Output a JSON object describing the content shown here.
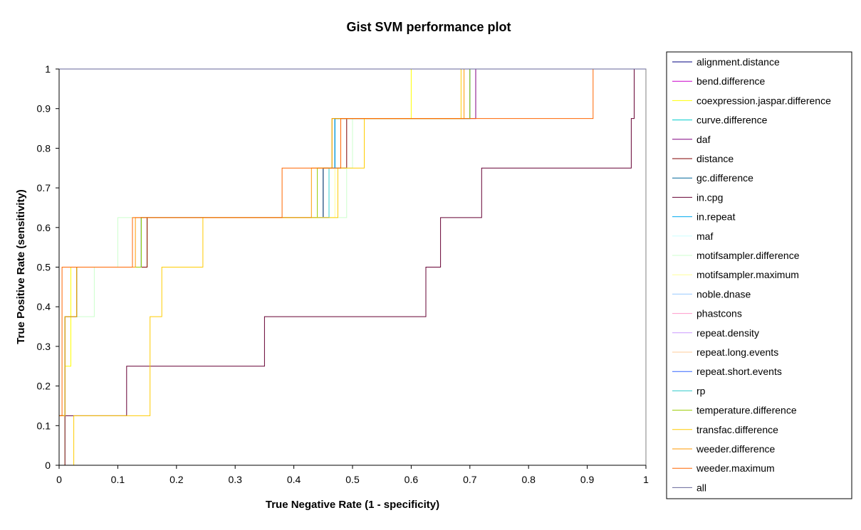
{
  "chart_data": {
    "type": "line",
    "title": "Gist SVM performance plot",
    "xlabel": "True Negative Rate (1 - specificity)",
    "ylabel": "True Positive Rate (sensitivity)",
    "xlim": [
      0,
      1
    ],
    "ylim": [
      0,
      1
    ],
    "x_ticks": [
      "0",
      "0.1",
      "0.2",
      "0.3",
      "0.4",
      "0.5",
      "0.6",
      "0.7",
      "0.8",
      "0.9",
      "1"
    ],
    "y_ticks": [
      "0",
      "0.1",
      "0.2",
      "0.3",
      "0.4",
      "0.5",
      "0.6",
      "0.7",
      "0.8",
      "0.9",
      "1"
    ],
    "grid": false,
    "legend_position": "right",
    "series": [
      {
        "name": "alignment.distance",
        "color": "#000080",
        "x": [
          0,
          0,
          0.01,
          0.01,
          0.03,
          0.03,
          0.14,
          0.14,
          0.46,
          0.46,
          0.48,
          0.48,
          0.7,
          0.7,
          1
        ],
        "y": [
          0,
          0.125,
          0.125,
          0.375,
          0.375,
          0.5,
          0.5,
          0.625,
          0.625,
          0.75,
          0.75,
          0.875,
          0.875,
          1,
          1
        ]
      },
      {
        "name": "bend.difference",
        "color": "#cc00cc",
        "x": [
          0,
          0,
          0.01,
          0.01,
          0.03,
          0.03,
          0.14,
          0.14,
          0.45,
          0.45,
          0.47,
          0.47,
          0.7,
          0.7,
          1
        ],
        "y": [
          0,
          0.125,
          0.125,
          0.375,
          0.375,
          0.5,
          0.5,
          0.625,
          0.625,
          0.75,
          0.75,
          0.875,
          0.875,
          1,
          1
        ]
      },
      {
        "name": "coexpression.jaspar.difference",
        "color": "#ffff00",
        "x": [
          0,
          0.01,
          0.01,
          0.02,
          0.02,
          0.15,
          0.15,
          0.45,
          0.45,
          0.48,
          0.48,
          0.6,
          0.6,
          1
        ],
        "y": [
          0,
          0,
          0.25,
          0.25,
          0.5,
          0.5,
          0.625,
          0.625,
          0.75,
          0.75,
          0.875,
          0.875,
          1,
          1
        ]
      },
      {
        "name": "curve.difference",
        "color": "#00cccc",
        "x": [
          0,
          0,
          0.01,
          0.01,
          0.03,
          0.03,
          0.14,
          0.14,
          0.46,
          0.46,
          0.47,
          0.47,
          0.7,
          0.7,
          1
        ],
        "y": [
          0,
          0.125,
          0.125,
          0.375,
          0.375,
          0.5,
          0.5,
          0.625,
          0.625,
          0.75,
          0.75,
          0.875,
          0.875,
          1,
          1
        ]
      },
      {
        "name": "daf",
        "color": "#800080",
        "x": [
          0,
          0,
          0.01,
          0.01,
          0.03,
          0.03,
          0.14,
          0.14,
          0.45,
          0.45,
          0.48,
          0.48,
          0.71,
          0.71,
          1
        ],
        "y": [
          0,
          0.125,
          0.125,
          0.375,
          0.375,
          0.5,
          0.5,
          0.625,
          0.625,
          0.75,
          0.75,
          0.875,
          0.875,
          1,
          1
        ]
      },
      {
        "name": "distance",
        "color": "#800000",
        "x": [
          0,
          0,
          0.01,
          0.01,
          0.03,
          0.03,
          0.15,
          0.15,
          0.46,
          0.46,
          0.49,
          0.49,
          0.7,
          0.7,
          1
        ],
        "y": [
          0,
          0.125,
          0.125,
          0.375,
          0.375,
          0.5,
          0.5,
          0.625,
          0.625,
          0.75,
          0.75,
          0.875,
          0.875,
          1,
          1
        ]
      },
      {
        "name": "gc.difference",
        "color": "#006699",
        "x": [
          0,
          0,
          0.01,
          0.01,
          0.03,
          0.03,
          0.14,
          0.14,
          0.45,
          0.45,
          0.47,
          0.47,
          0.7,
          0.7,
          1
        ],
        "y": [
          0,
          0.125,
          0.125,
          0.375,
          0.375,
          0.5,
          0.5,
          0.625,
          0.625,
          0.75,
          0.75,
          0.875,
          0.875,
          1,
          1
        ]
      },
      {
        "name": "in.cpg",
        "color": "#660033",
        "x": [
          0,
          0.01,
          0.01,
          0.115,
          0.115,
          0.35,
          0.35,
          0.625,
          0.625,
          0.65,
          0.65,
          0.72,
          0.72,
          0.975,
          0.975,
          0.98,
          0.98,
          1
        ],
        "y": [
          0,
          0,
          0.125,
          0.125,
          0.25,
          0.25,
          0.375,
          0.375,
          0.5,
          0.5,
          0.625,
          0.625,
          0.75,
          0.75,
          0.875,
          0.875,
          1,
          1
        ]
      },
      {
        "name": "in.repeat",
        "color": "#00aaee",
        "x": [
          0,
          0,
          0.01,
          0.01,
          0.03,
          0.03,
          0.14,
          0.14,
          0.46,
          0.46,
          0.47,
          0.47,
          0.7,
          0.7,
          1
        ],
        "y": [
          0,
          0.125,
          0.125,
          0.375,
          0.375,
          0.5,
          0.5,
          0.625,
          0.625,
          0.75,
          0.75,
          0.875,
          0.875,
          1,
          1
        ]
      },
      {
        "name": "maf",
        "color": "#ccffff",
        "x": [
          0,
          0,
          0.01,
          0.01,
          0.03,
          0.03,
          0.14,
          0.14,
          0.46,
          0.46,
          0.48,
          0.48,
          0.7,
          0.7,
          1
        ],
        "y": [
          0,
          0.125,
          0.125,
          0.375,
          0.375,
          0.5,
          0.5,
          0.625,
          0.625,
          0.75,
          0.75,
          0.875,
          0.875,
          1,
          1
        ]
      },
      {
        "name": "motifsampler.difference",
        "color": "#ccffcc",
        "x": [
          0,
          0,
          0.01,
          0.01,
          0.06,
          0.06,
          0.1,
          0.1,
          0.49,
          0.49,
          0.5,
          0.5,
          0.7,
          0.7,
          1
        ],
        "y": [
          0,
          0.125,
          0.125,
          0.375,
          0.375,
          0.5,
          0.5,
          0.625,
          0.625,
          0.75,
          0.75,
          0.875,
          0.875,
          1,
          1
        ]
      },
      {
        "name": "motifsampler.maximum",
        "color": "#ffff99",
        "x": [
          0,
          0,
          0.01,
          0.01,
          0.03,
          0.03,
          0.14,
          0.14,
          0.47,
          0.47,
          0.48,
          0.48,
          0.7,
          0.7,
          1
        ],
        "y": [
          0,
          0.125,
          0.125,
          0.375,
          0.375,
          0.5,
          0.5,
          0.625,
          0.625,
          0.75,
          0.75,
          0.875,
          0.875,
          1,
          1
        ]
      },
      {
        "name": "noble.dnase",
        "color": "#99ccff",
        "x": [
          0,
          0,
          0.01,
          0.01,
          0.03,
          0.03,
          0.14,
          0.14,
          0.46,
          0.46,
          0.48,
          0.48,
          0.7,
          0.7,
          1
        ],
        "y": [
          0,
          0.125,
          0.125,
          0.375,
          0.375,
          0.5,
          0.5,
          0.625,
          0.625,
          0.75,
          0.75,
          0.875,
          0.875,
          1,
          1
        ]
      },
      {
        "name": "phastcons",
        "color": "#ff99cc",
        "x": [
          0,
          0,
          0.01,
          0.01,
          0.03,
          0.03,
          0.14,
          0.14,
          0.46,
          0.46,
          0.48,
          0.48,
          0.7,
          0.7,
          1
        ],
        "y": [
          0,
          0.125,
          0.125,
          0.375,
          0.375,
          0.5,
          0.5,
          0.625,
          0.625,
          0.75,
          0.75,
          0.875,
          0.875,
          1,
          1
        ]
      },
      {
        "name": "repeat.density",
        "color": "#cc99ff",
        "x": [
          0,
          0,
          0.01,
          0.01,
          0.03,
          0.03,
          0.14,
          0.14,
          0.46,
          0.46,
          0.48,
          0.48,
          0.7,
          0.7,
          1
        ],
        "y": [
          0,
          0.125,
          0.125,
          0.375,
          0.375,
          0.5,
          0.5,
          0.625,
          0.625,
          0.75,
          0.75,
          0.875,
          0.875,
          1,
          1
        ]
      },
      {
        "name": "repeat.long.events",
        "color": "#ffcc99",
        "x": [
          0,
          0,
          0.01,
          0.01,
          0.03,
          0.03,
          0.14,
          0.14,
          0.46,
          0.46,
          0.48,
          0.48,
          0.7,
          0.7,
          1
        ],
        "y": [
          0,
          0.125,
          0.125,
          0.375,
          0.375,
          0.5,
          0.5,
          0.625,
          0.625,
          0.75,
          0.75,
          0.875,
          0.875,
          1,
          1
        ]
      },
      {
        "name": "repeat.short.events",
        "color": "#3366ff",
        "x": [
          0,
          0,
          0.01,
          0.01,
          0.03,
          0.03,
          0.14,
          0.14,
          0.46,
          0.46,
          0.48,
          0.48,
          0.7,
          0.7,
          1
        ],
        "y": [
          0,
          0.125,
          0.125,
          0.375,
          0.375,
          0.5,
          0.5,
          0.625,
          0.625,
          0.75,
          0.75,
          0.875,
          0.875,
          1,
          1
        ]
      },
      {
        "name": "rp",
        "color": "#33cccc",
        "x": [
          0,
          0,
          0.01,
          0.01,
          0.03,
          0.03,
          0.14,
          0.14,
          0.46,
          0.46,
          0.48,
          0.48,
          0.7,
          0.7,
          1
        ],
        "y": [
          0,
          0.125,
          0.125,
          0.375,
          0.375,
          0.5,
          0.5,
          0.625,
          0.625,
          0.75,
          0.75,
          0.875,
          0.875,
          1,
          1
        ]
      },
      {
        "name": "temperature.difference",
        "color": "#99cc00",
        "x": [
          0,
          0,
          0.01,
          0.01,
          0.03,
          0.03,
          0.14,
          0.14,
          0.44,
          0.44,
          0.465,
          0.465,
          0.7,
          0.7,
          1
        ],
        "y": [
          0,
          0.125,
          0.125,
          0.375,
          0.375,
          0.5,
          0.5,
          0.625,
          0.625,
          0.75,
          0.75,
          0.875,
          0.875,
          1,
          1
        ]
      },
      {
        "name": "transfac.difference",
        "color": "#ffcc00",
        "x": [
          0,
          0.025,
          0.025,
          0.155,
          0.155,
          0.175,
          0.175,
          0.245,
          0.245,
          0.475,
          0.475,
          0.52,
          0.52,
          0.685,
          0.685,
          1
        ],
        "y": [
          0,
          0,
          0.125,
          0.125,
          0.375,
          0.375,
          0.5,
          0.5,
          0.625,
          0.625,
          0.75,
          0.75,
          0.875,
          0.875,
          1,
          1
        ]
      },
      {
        "name": "weeder.difference",
        "color": "#ff9900",
        "x": [
          0,
          0,
          0.01,
          0.01,
          0.03,
          0.03,
          0.13,
          0.13,
          0.43,
          0.43,
          0.465,
          0.465,
          0.69,
          0.69,
          1
        ],
        "y": [
          0,
          0.125,
          0.125,
          0.375,
          0.375,
          0.5,
          0.5,
          0.625,
          0.625,
          0.75,
          0.75,
          0.875,
          0.875,
          1,
          1
        ]
      },
      {
        "name": "weeder.maximum",
        "color": "#ff6600",
        "x": [
          0,
          0,
          0.005,
          0.005,
          0.02,
          0.02,
          0.125,
          0.125,
          0.38,
          0.38,
          0.48,
          0.48,
          0.91,
          0.91,
          1
        ],
        "y": [
          0,
          0.125,
          0.125,
          0.5,
          0.5,
          0.5,
          0.5,
          0.625,
          0.625,
          0.75,
          0.75,
          0.875,
          0.875,
          1,
          1
        ]
      },
      {
        "name": "all",
        "color": "#666699",
        "x": [
          0,
          0,
          1
        ],
        "y": [
          0,
          1,
          1
        ]
      }
    ]
  }
}
